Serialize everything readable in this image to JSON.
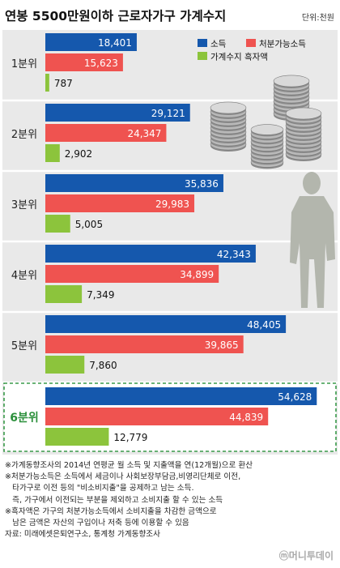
{
  "colors": {
    "income": "#1558ad",
    "disposable": "#ef5350",
    "surplus": "#8cc43c",
    "background": "#e9e9e9",
    "highlight_border": "#3a9a4a",
    "highlight_label": "#2a8f3a",
    "label": "#222222"
  },
  "icons": [
    "coin-stacks-illustration",
    "businessman-silhouette"
  ],
  "chart_data": {
    "type": "bar",
    "orientation": "horizontal",
    "title": "연봉 5500만원이하 근로자가구 가계수지",
    "unit": "단위:천원",
    "categories": [
      "1분위",
      "2분위",
      "3분위",
      "4분위",
      "5분위",
      "6분위"
    ],
    "highlighted_category": "6분위",
    "series": [
      {
        "name": "소득",
        "values": [
          18401,
          29121,
          35836,
          42343,
          48405,
          54628
        ],
        "labels": [
          "18,401",
          "29,121",
          "35,836",
          "42,343",
          "48,405",
          "54,628"
        ]
      },
      {
        "name": "처분가능소득",
        "values": [
          15623,
          24347,
          29983,
          34899,
          39865,
          44839
        ],
        "labels": [
          "15,623",
          "24,347",
          "29,983",
          "34,899",
          "39,865",
          "44,839"
        ]
      },
      {
        "name": "가계수지 흑자액",
        "values": [
          787,
          2902,
          5005,
          7349,
          7860,
          12779
        ],
        "labels": [
          "787",
          "2,902",
          "5,005",
          "7,349",
          "7,860",
          "12,779"
        ]
      }
    ],
    "xlim": [
      0,
      58000
    ],
    "grid": false,
    "legend_position": "top-right"
  },
  "notes": [
    "※가계동향조사의 2014년 연평균 월 소득 및 지출액을 연(12개월)으로 환산",
    "※처분가능소득은 소득에서 세금이나 사회보장부담금,비영리단체로 이전,",
    "   타가구로 이전 등의 \"비소비지출\"을 공제하고 남는 소득.",
    "   즉, 가구에서 이전되는 부분을 제외하고 소비지출 할 수 있는 소득",
    "※흑자액은 가구의 처분가능소득에서 소비지출을 차감한 금액으로",
    "   남은 금액은 자산의 구입이나 저축 등에 이용할 수 있음",
    "자료: 미래에셋은퇴연구소, 통계청 가계동향조사"
  ],
  "watermark": "ⓜ머니투데이"
}
